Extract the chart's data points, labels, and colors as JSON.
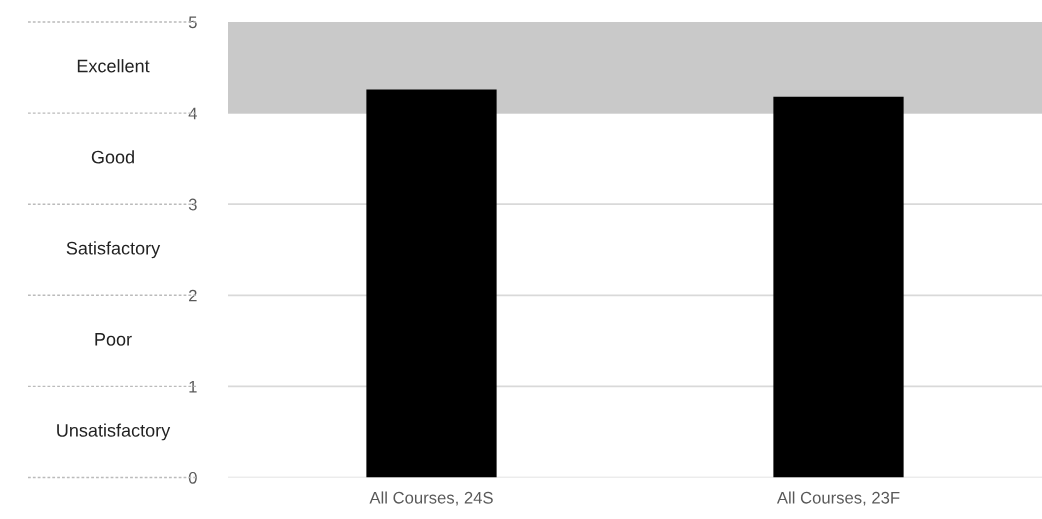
{
  "chart_data": {
    "type": "bar",
    "categories": [
      "All Courses, 24S",
      "All Courses, 23F"
    ],
    "values": [
      4.26,
      4.18
    ],
    "color": "#000000",
    "ylim": [
      0,
      5
    ],
    "yticks": [
      0,
      1,
      2,
      3,
      4,
      5
    ],
    "grid": "y",
    "bands": [
      {
        "axis": "y",
        "from": 4,
        "to": 5,
        "color": "#c9c9c9"
      }
    ],
    "annotations": [
      "Excellent",
      "Good",
      "Satisfactory",
      "Poor",
      "Unsatisfactory"
    ]
  }
}
